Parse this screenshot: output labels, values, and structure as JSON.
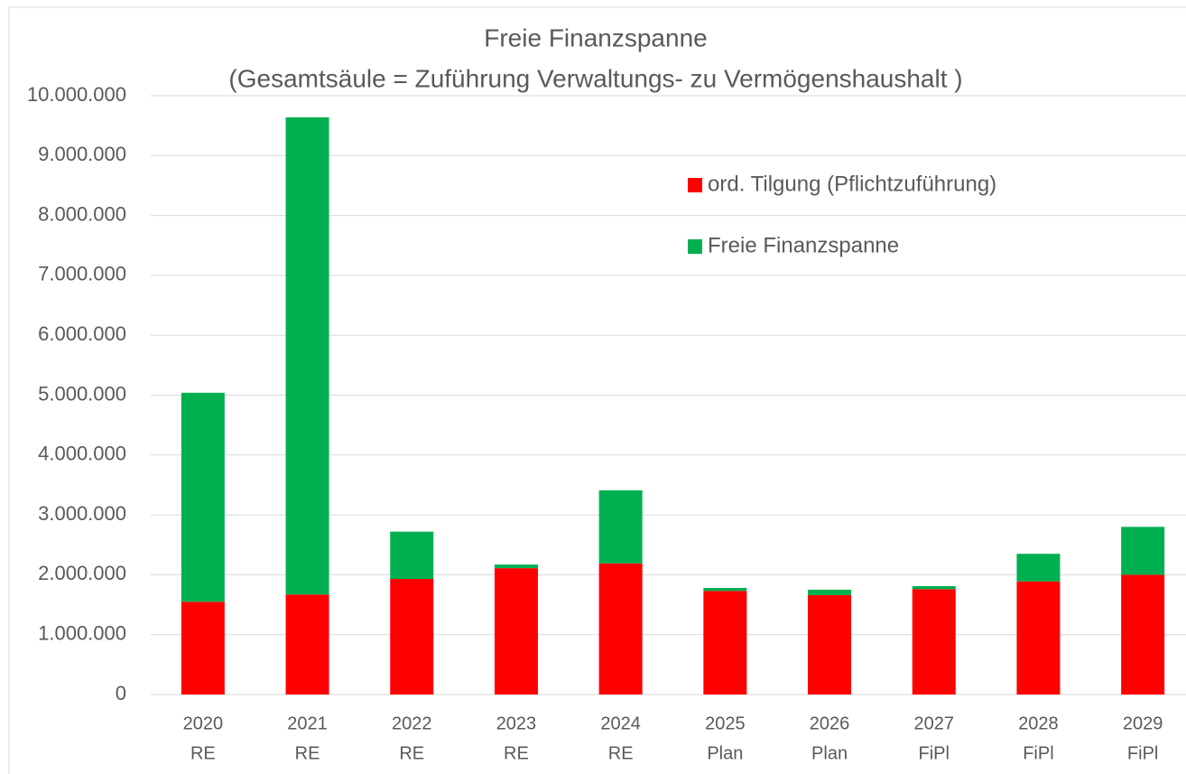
{
  "chart_data": {
    "type": "stacked_bar",
    "title": "Freie Finanzspanne",
    "subtitle": "(Gesamtsäule = Zuführung Verwaltungs- zu Vermögenshaushalt )",
    "categories": [
      [
        "2020",
        "RE"
      ],
      [
        "2021",
        "RE"
      ],
      [
        "2022",
        "RE"
      ],
      [
        "2023",
        "RE"
      ],
      [
        "2024",
        "RE"
      ],
      [
        "2025",
        "Plan"
      ],
      [
        "2026",
        "Plan"
      ],
      [
        "2027",
        "FiPl"
      ],
      [
        "2028",
        "FiPl"
      ],
      [
        "2029",
        "FiPl"
      ]
    ],
    "series": [
      {
        "name": "ord. Tilgung (Pflichtzuführung)",
        "color": "#ff0000",
        "values": [
          1550000,
          1670000,
          1930000,
          2110000,
          2190000,
          1730000,
          1660000,
          1760000,
          1890000,
          2000000
        ]
      },
      {
        "name": "Freie Finanzspanne",
        "color": "#00b050",
        "values": [
          3490000,
          7970000,
          790000,
          60000,
          1220000,
          50000,
          90000,
          50000,
          460000,
          800000
        ]
      }
    ],
    "ylim": [
      0,
      10000000
    ],
    "yticks": [
      0,
      {
        "value": 1000000,
        "label": "1.000.000"
      },
      {
        "value": 2000000,
        "label": "2.000.000"
      },
      {
        "value": 3000000,
        "label": "3.000.000"
      },
      {
        "value": 4000000,
        "label": "4.000.000"
      },
      {
        "value": 5000000,
        "label": "5.000.000"
      },
      {
        "value": 6000000,
        "label": "6.000.000"
      },
      {
        "value": 7000000,
        "label": "7.000.000"
      },
      {
        "value": 8000000,
        "label": "8.000.000"
      },
      {
        "value": 9000000,
        "label": "9.000.000"
      },
      {
        "value": 10000000,
        "label": "10.000.000"
      }
    ],
    "grid": true,
    "legend": "upper right"
  }
}
